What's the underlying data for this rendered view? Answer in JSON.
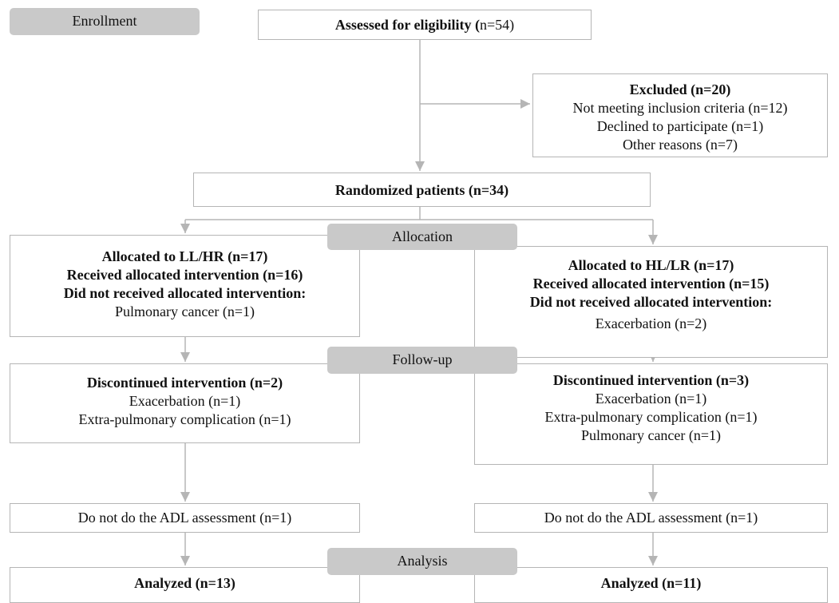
{
  "stages": [
    "Enrollment",
    "Allocation",
    "Follow-up",
    "Analysis"
  ],
  "assessed": {
    "heading": "Assessed for eligibility (",
    "text": "n=54)"
  },
  "excluded": {
    "heading": "Excluded (n=20)",
    "lines": [
      "Not meeting inclusion criteria (n=12)",
      "Declined to participate (n=1)",
      "Other reasons (n=7)"
    ]
  },
  "randomized": {
    "heading": "Randomized patients (n=34)"
  },
  "left_allocation": {
    "headings": [
      "Allocated to LL/HR (n=17)",
      "Received allocated intervention (n=16)",
      "Did not received allocated intervention:"
    ],
    "lines": [
      "Pulmonary cancer (n=1)"
    ]
  },
  "right_allocation": {
    "headings": [
      "Allocated to HL/LR (n=17)",
      "Received allocated intervention (n=15)",
      "Did not received allocated intervention:"
    ],
    "lines": [
      "Exacerbation (n=2)"
    ]
  },
  "left_followup": {
    "heading": "Discontinued intervention (n=2)",
    "lines": [
      "Exacerbation (n=1)",
      "Extra-pulmonary complication (n=1)"
    ]
  },
  "right_followup": {
    "heading": "Discontinued intervention (n=3)",
    "lines": [
      "Exacerbation (n=1)",
      "Extra-pulmonary complication (n=1)",
      "Pulmonary cancer (n=1)"
    ]
  },
  "left_adl": {
    "lines": [
      "Do not do the ADL assessment (n=1)"
    ]
  },
  "right_adl": {
    "lines": [
      "Do not do the ADL assessment (n=1)"
    ]
  },
  "left_analysis": {
    "heading": "Analyzed (n=13)"
  },
  "right_analysis": {
    "heading": "Analyzed (n=11)"
  }
}
